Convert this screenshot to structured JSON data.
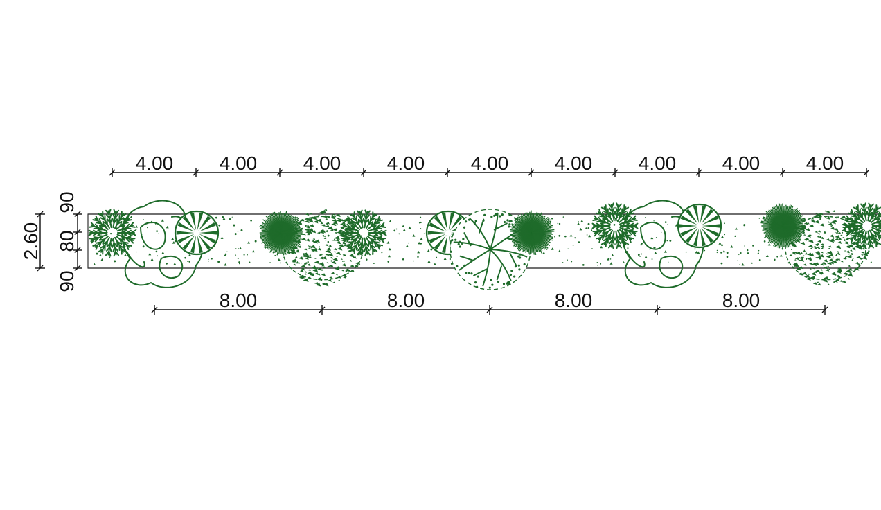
{
  "colors": {
    "plant": "#1e6b2a",
    "line": "#111111",
    "border": "#555555"
  },
  "top_dimensions": [
    "4.00",
    "4.00",
    "4.00",
    "4.00",
    "4.00",
    "4.00",
    "4.00",
    "4.00",
    "4.00"
  ],
  "bottom_dimensions": [
    "8.00",
    "8.00",
    "8.00",
    "8.00"
  ],
  "side_dimensions": {
    "total": "2.60",
    "segments": [
      "90",
      "80",
      "90"
    ]
  },
  "plants": [
    {
      "kind": "spiky-shrub"
    },
    {
      "kind": "loose-outline-tree"
    },
    {
      "kind": "radial-spoke-tree"
    },
    {
      "kind": "dense-star-shrub"
    },
    {
      "kind": "speckled-canopy-tree"
    },
    {
      "kind": "spiky-shrub"
    },
    {
      "kind": "radial-spoke-tree"
    },
    {
      "kind": "branched-tree"
    },
    {
      "kind": "dense-star-shrub"
    },
    {
      "kind": "spiky-shrub"
    },
    {
      "kind": "loose-outline-tree"
    },
    {
      "kind": "radial-spoke-tree"
    },
    {
      "kind": "dense-star-shrub"
    },
    {
      "kind": "speckled-canopy-tree"
    },
    {
      "kind": "spiky-shrub"
    }
  ]
}
